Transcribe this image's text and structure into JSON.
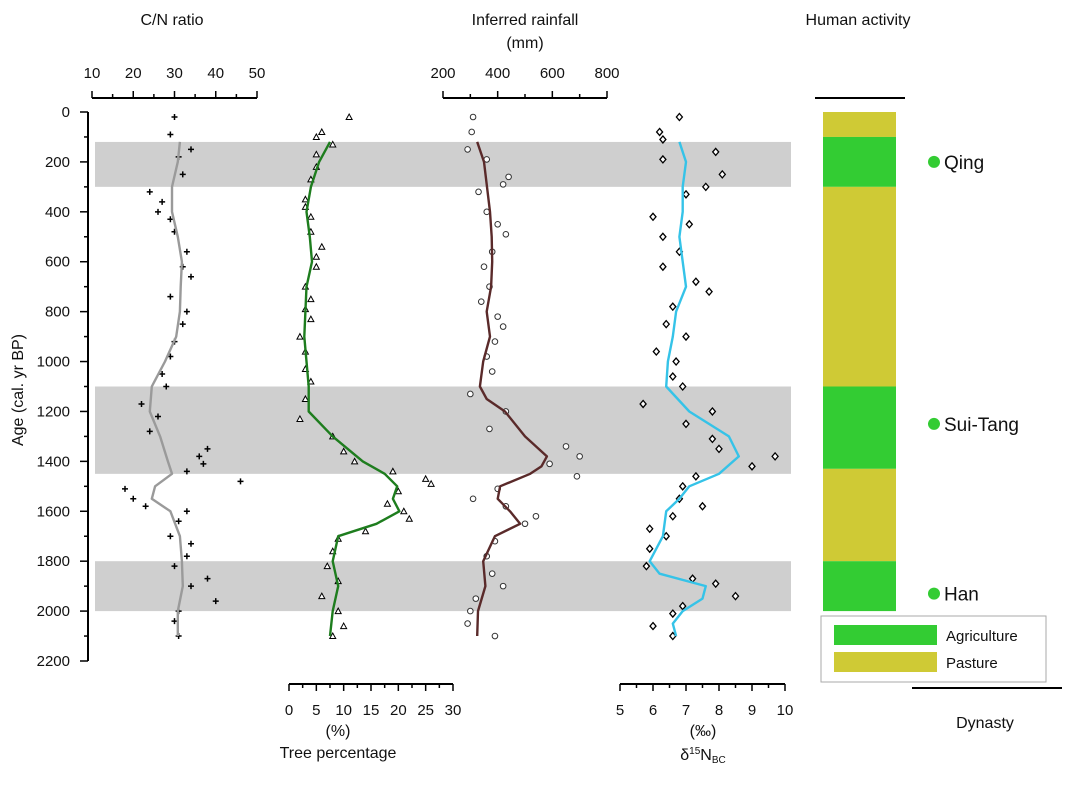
{
  "chart_data": {
    "type": "line",
    "y_axis": {
      "label": "Age (cal. yr BP)",
      "range": [
        0,
        2200
      ],
      "ticks": [
        0,
        200,
        400,
        600,
        800,
        1000,
        1200,
        1400,
        1600,
        1800,
        2000,
        2200
      ],
      "inverted": true
    },
    "shaded_intervals": [
      [
        120,
        300
      ],
      [
        1100,
        1450
      ],
      [
        1800,
        2000
      ]
    ],
    "panels": [
      {
        "id": "cn",
        "title": "C/N ratio",
        "unit": "",
        "axis_position": "top",
        "range": [
          10,
          50
        ],
        "ticks": [
          10,
          20,
          30,
          40,
          50
        ],
        "minor_step": 5,
        "line_color": "#9a9a9a",
        "marker": "plus",
        "line": [
          [
            120,
            31.3
          ],
          [
            200,
            30.8
          ],
          [
            300,
            29.4
          ],
          [
            400,
            29.4
          ],
          [
            500,
            30.8
          ],
          [
            600,
            31.8
          ],
          [
            700,
            31.5
          ],
          [
            800,
            31.3
          ],
          [
            900,
            30.4
          ],
          [
            1000,
            27.7
          ],
          [
            1100,
            24.5
          ],
          [
            1200,
            24.0
          ],
          [
            1300,
            26.5
          ],
          [
            1400,
            28.4
          ],
          [
            1450,
            29.4
          ],
          [
            1500,
            25.3
          ],
          [
            1550,
            24.5
          ],
          [
            1600,
            29.0
          ],
          [
            1700,
            31.3
          ],
          [
            1800,
            31.8
          ],
          [
            1900,
            32.0
          ],
          [
            2000,
            30.8
          ],
          [
            2100,
            30.8
          ]
        ],
        "points": [
          [
            20,
            30
          ],
          [
            90,
            29
          ],
          [
            150,
            34
          ],
          [
            180,
            31
          ],
          [
            250,
            32
          ],
          [
            320,
            24
          ],
          [
            360,
            27
          ],
          [
            400,
            26
          ],
          [
            430,
            29
          ],
          [
            480,
            30
          ],
          [
            560,
            33
          ],
          [
            620,
            32
          ],
          [
            660,
            34
          ],
          [
            740,
            29
          ],
          [
            800,
            33
          ],
          [
            850,
            32
          ],
          [
            920,
            30
          ],
          [
            980,
            29
          ],
          [
            1050,
            27
          ],
          [
            1100,
            28
          ],
          [
            1170,
            22
          ],
          [
            1220,
            26
          ],
          [
            1280,
            24
          ],
          [
            1350,
            38
          ],
          [
            1380,
            36
          ],
          [
            1410,
            37
          ],
          [
            1440,
            33
          ],
          [
            1480,
            46
          ],
          [
            1510,
            18
          ],
          [
            1550,
            20
          ],
          [
            1580,
            23
          ],
          [
            1600,
            33
          ],
          [
            1640,
            31
          ],
          [
            1700,
            29
          ],
          [
            1730,
            34
          ],
          [
            1780,
            33
          ],
          [
            1820,
            30
          ],
          [
            1870,
            38
          ],
          [
            1900,
            34
          ],
          [
            1960,
            40
          ],
          [
            2000,
            31
          ],
          [
            2040,
            30
          ],
          [
            2100,
            31
          ]
        ]
      },
      {
        "id": "tree",
        "title": "Tree percentage",
        "unit": "(%)",
        "axis_position": "bottom",
        "range": [
          0,
          30
        ],
        "ticks": [
          0,
          5,
          10,
          15,
          20,
          25,
          30
        ],
        "minor_step": 2.5,
        "line_color": "#1e7d1e",
        "marker": "triangle",
        "line": [
          [
            120,
            7.5
          ],
          [
            200,
            5.5
          ],
          [
            300,
            4.0
          ],
          [
            400,
            3.2
          ],
          [
            500,
            3.8
          ],
          [
            600,
            4.2
          ],
          [
            700,
            3.2
          ],
          [
            800,
            3.0
          ],
          [
            900,
            2.8
          ],
          [
            1000,
            3.2
          ],
          [
            1100,
            3.6
          ],
          [
            1200,
            3.6
          ],
          [
            1300,
            8.0
          ],
          [
            1400,
            13.5
          ],
          [
            1450,
            17.5
          ],
          [
            1500,
            19.8
          ],
          [
            1550,
            19.0
          ],
          [
            1600,
            20.2
          ],
          [
            1650,
            16.0
          ],
          [
            1700,
            9.0
          ],
          [
            1800,
            8.0
          ],
          [
            1900,
            9.0
          ],
          [
            2000,
            8.0
          ],
          [
            2100,
            7.5
          ]
        ],
        "points": [
          [
            20,
            11
          ],
          [
            80,
            6
          ],
          [
            100,
            5
          ],
          [
            130,
            8
          ],
          [
            170,
            5
          ],
          [
            220,
            5
          ],
          [
            270,
            4
          ],
          [
            350,
            3
          ],
          [
            380,
            3
          ],
          [
            420,
            4
          ],
          [
            480,
            4
          ],
          [
            540,
            6
          ],
          [
            580,
            5
          ],
          [
            620,
            5
          ],
          [
            700,
            3
          ],
          [
            750,
            4
          ],
          [
            790,
            3
          ],
          [
            830,
            4
          ],
          [
            900,
            2
          ],
          [
            960,
            3
          ],
          [
            1030,
            3
          ],
          [
            1080,
            4
          ],
          [
            1150,
            3
          ],
          [
            1230,
            2
          ],
          [
            1300,
            8
          ],
          [
            1360,
            10
          ],
          [
            1400,
            12
          ],
          [
            1440,
            19
          ],
          [
            1470,
            25
          ],
          [
            1490,
            26
          ],
          [
            1520,
            20
          ],
          [
            1570,
            18
          ],
          [
            1600,
            21
          ],
          [
            1630,
            22
          ],
          [
            1680,
            14
          ],
          [
            1710,
            9
          ],
          [
            1760,
            8
          ],
          [
            1820,
            7
          ],
          [
            1880,
            9
          ],
          [
            1940,
            6
          ],
          [
            2000,
            9
          ],
          [
            2060,
            10
          ],
          [
            2100,
            8
          ]
        ]
      },
      {
        "id": "rain",
        "title": "Inferred rainfall",
        "unit": "(mm)",
        "axis_position": "top",
        "range": [
          200,
          800
        ],
        "ticks": [
          200,
          400,
          600,
          800
        ],
        "minor_step": 100,
        "line_color": "#5a2a2a",
        "marker": "circle",
        "line": [
          [
            120,
            325
          ],
          [
            200,
            350
          ],
          [
            300,
            361
          ],
          [
            400,
            372
          ],
          [
            500,
            378
          ],
          [
            600,
            380
          ],
          [
            700,
            376
          ],
          [
            800,
            360
          ],
          [
            900,
            372
          ],
          [
            1000,
            347
          ],
          [
            1100,
            335
          ],
          [
            1150,
            360
          ],
          [
            1200,
            427
          ],
          [
            1300,
            500
          ],
          [
            1380,
            580
          ],
          [
            1420,
            560
          ],
          [
            1450,
            519
          ],
          [
            1500,
            409
          ],
          [
            1550,
            400
          ],
          [
            1600,
            445
          ],
          [
            1650,
            482
          ],
          [
            1700,
            390
          ],
          [
            1800,
            347
          ],
          [
            1900,
            355
          ],
          [
            2000,
            328
          ],
          [
            2100,
            325
          ]
        ],
        "points": [
          [
            20,
            310
          ],
          [
            80,
            305
          ],
          [
            150,
            290
          ],
          [
            190,
            360
          ],
          [
            260,
            440
          ],
          [
            290,
            420
          ],
          [
            320,
            330
          ],
          [
            400,
            360
          ],
          [
            450,
            400
          ],
          [
            490,
            430
          ],
          [
            560,
            380
          ],
          [
            620,
            350
          ],
          [
            700,
            370
          ],
          [
            760,
            340
          ],
          [
            820,
            400
          ],
          [
            860,
            420
          ],
          [
            920,
            390
          ],
          [
            980,
            360
          ],
          [
            1040,
            380
          ],
          [
            1130,
            300
          ],
          [
            1200,
            430
          ],
          [
            1270,
            370
          ],
          [
            1340,
            650
          ],
          [
            1380,
            700
          ],
          [
            1410,
            590
          ],
          [
            1460,
            690
          ],
          [
            1510,
            400
          ],
          [
            1550,
            310
          ],
          [
            1580,
            430
          ],
          [
            1620,
            540
          ],
          [
            1650,
            500
          ],
          [
            1720,
            390
          ],
          [
            1780,
            360
          ],
          [
            1850,
            380
          ],
          [
            1900,
            420
          ],
          [
            1950,
            320
          ],
          [
            2000,
            300
          ],
          [
            2050,
            290
          ],
          [
            2100,
            390
          ]
        ]
      },
      {
        "id": "d15n",
        "title": "δ15NBC",
        "title_main": "δ",
        "title_sup": "15",
        "title_base": "N",
        "title_sub": "BC",
        "unit": "(‰)",
        "axis_position": "bottom",
        "range": [
          5,
          10
        ],
        "ticks": [
          5,
          6,
          7,
          8,
          9,
          10
        ],
        "minor_step": 0.5,
        "line_color": "#35c3e8",
        "marker": "diamond",
        "line": [
          [
            120,
            6.8
          ],
          [
            200,
            7.0
          ],
          [
            300,
            6.9
          ],
          [
            400,
            6.9
          ],
          [
            500,
            6.8
          ],
          [
            600,
            6.9
          ],
          [
            700,
            7.0
          ],
          [
            800,
            6.7
          ],
          [
            900,
            6.6
          ],
          [
            1000,
            6.45
          ],
          [
            1100,
            6.4
          ],
          [
            1200,
            7.1
          ],
          [
            1300,
            8.3
          ],
          [
            1380,
            8.6
          ],
          [
            1450,
            8.0
          ],
          [
            1500,
            7.1
          ],
          [
            1550,
            6.8
          ],
          [
            1600,
            6.4
          ],
          [
            1700,
            6.3
          ],
          [
            1800,
            5.9
          ],
          [
            1850,
            6.2
          ],
          [
            1900,
            7.6
          ],
          [
            1950,
            7.5
          ],
          [
            2000,
            6.9
          ],
          [
            2050,
            6.6
          ],
          [
            2100,
            6.7
          ]
        ],
        "points": [
          [
            20,
            6.8
          ],
          [
            80,
            6.2
          ],
          [
            110,
            6.3
          ],
          [
            160,
            7.9
          ],
          [
            190,
            6.3
          ],
          [
            250,
            8.1
          ],
          [
            300,
            7.6
          ],
          [
            330,
            7.0
          ],
          [
            420,
            6.0
          ],
          [
            450,
            7.1
          ],
          [
            500,
            6.3
          ],
          [
            560,
            6.8
          ],
          [
            620,
            6.3
          ],
          [
            680,
            7.3
          ],
          [
            720,
            7.7
          ],
          [
            780,
            6.6
          ],
          [
            850,
            6.4
          ],
          [
            900,
            7.0
          ],
          [
            960,
            6.1
          ],
          [
            1000,
            6.7
          ],
          [
            1060,
            6.6
          ],
          [
            1100,
            6.9
          ],
          [
            1170,
            5.7
          ],
          [
            1200,
            7.8
          ],
          [
            1250,
            7.0
          ],
          [
            1310,
            7.8
          ],
          [
            1350,
            8.0
          ],
          [
            1380,
            9.7
          ],
          [
            1420,
            9.0
          ],
          [
            1460,
            7.3
          ],
          [
            1500,
            6.9
          ],
          [
            1550,
            6.8
          ],
          [
            1580,
            7.5
          ],
          [
            1620,
            6.6
          ],
          [
            1670,
            5.9
          ],
          [
            1700,
            6.4
          ],
          [
            1750,
            5.9
          ],
          [
            1820,
            5.8
          ],
          [
            1870,
            7.2
          ],
          [
            1890,
            7.9
          ],
          [
            1940,
            8.5
          ],
          [
            1980,
            6.9
          ],
          [
            2010,
            6.6
          ],
          [
            2060,
            6.0
          ],
          [
            2100,
            6.6
          ]
        ]
      }
    ],
    "human_activity": {
      "title_line1": "Human activity",
      "title_line2": "",
      "segments": [
        {
          "from": 0,
          "to": 100,
          "type": "Pasture"
        },
        {
          "from": 100,
          "to": 300,
          "type": "Agriculture"
        },
        {
          "from": 300,
          "to": 1100,
          "type": "Pasture"
        },
        {
          "from": 1100,
          "to": 1430,
          "type": "Agriculture"
        },
        {
          "from": 1430,
          "to": 1800,
          "type": "Pasture"
        },
        {
          "from": 1800,
          "to": 2000,
          "type": "Agriculture"
        }
      ],
      "colors": {
        "Agriculture": "#33cc33",
        "Pasture": "#cfca35"
      }
    },
    "dynasties": {
      "title": "Dynasty",
      "items": [
        {
          "name": "Qing",
          "age": 200
        },
        {
          "name": "Sui-Tang",
          "age": 1250
        },
        {
          "name": "Han",
          "age": 1930
        }
      ],
      "marker_color": "#33cc33"
    },
    "legend": {
      "position": "bottom-right",
      "items": [
        "Agriculture",
        "Pasture"
      ]
    },
    "shade_color": "#cfcfcf"
  }
}
